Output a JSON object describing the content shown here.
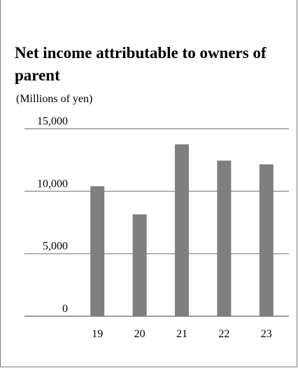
{
  "chart_data": {
    "type": "bar",
    "title": "Net income attributable to owners of parent",
    "unit_label": "(Millions of yen)",
    "categories": [
      "19",
      "20",
      "21",
      "22",
      "23"
    ],
    "series": [
      {
        "values": [
          10400,
          8150,
          13750,
          12450,
          12150
        ]
      }
    ],
    "ylim": [
      0,
      15000
    ],
    "yticks": [
      0,
      5000,
      10000,
      15000
    ],
    "ytick_labels": [
      "0",
      "5,000",
      "10,000",
      "15,000"
    ],
    "grid": true,
    "bar_color": "#7f7f7f",
    "grid_color": "#7f7f7f"
  }
}
